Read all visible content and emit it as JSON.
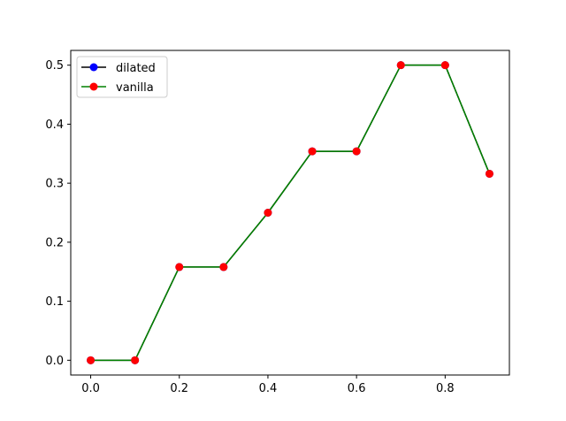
{
  "chart_data": {
    "type": "line",
    "title": "",
    "xlabel": "",
    "ylabel": "",
    "xlim": [
      -0.045,
      0.945
    ],
    "ylim": [
      -0.025,
      0.525
    ],
    "x": [
      0.0,
      0.1,
      0.2,
      0.3,
      0.4,
      0.5,
      0.6,
      0.7,
      0.8,
      0.9
    ],
    "xticks": [
      0.0,
      0.2,
      0.4,
      0.6,
      0.8
    ],
    "xtick_labels": [
      "0.0",
      "0.2",
      "0.4",
      "0.6",
      "0.8"
    ],
    "yticks": [
      0.0,
      0.1,
      0.2,
      0.3,
      0.4,
      0.5
    ],
    "ytick_labels": [
      "0.0",
      "0.1",
      "0.2",
      "0.3",
      "0.4",
      "0.5"
    ],
    "grid": false,
    "legend_position": "upper-left",
    "series": [
      {
        "name": "dilated",
        "line_color": "#000000",
        "marker_color": "#0000ff",
        "values": [
          0.0,
          0.0,
          0.158,
          0.158,
          0.25,
          0.354,
          0.354,
          0.5,
          0.5,
          0.316
        ]
      },
      {
        "name": "vanilla",
        "line_color": "#008000",
        "marker_color": "#ff0000",
        "values": [
          0.0,
          0.0,
          0.158,
          0.158,
          0.25,
          0.354,
          0.354,
          0.5,
          0.5,
          0.316
        ]
      }
    ]
  }
}
